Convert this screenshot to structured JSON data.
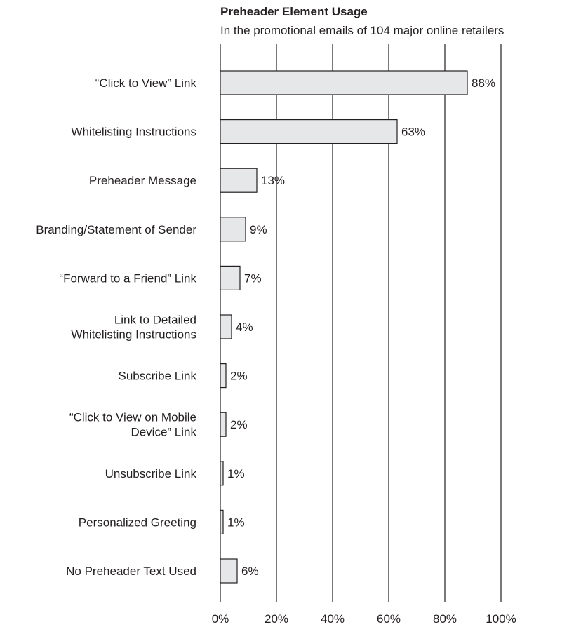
{
  "chart_data": {
    "type": "bar",
    "orientation": "horizontal",
    "title": "Preheader Element Usage",
    "subtitle": "In the promotional emails of 104 major online retailers",
    "xlabel": "",
    "ylabel": "",
    "xlim": [
      0,
      100
    ],
    "x_ticks": [
      "0%",
      "20%",
      "40%",
      "60%",
      "80%",
      "100%"
    ],
    "grid": true,
    "bar_color": "#e6e7e8",
    "bar_stroke": "#231f20",
    "categories": [
      [
        "“Click to View” Link"
      ],
      [
        "Whitelisting Instructions"
      ],
      [
        "Preheader Message"
      ],
      [
        "Branding/Statement of Sender"
      ],
      [
        "“Forward to a Friend” Link"
      ],
      [
        "Link to Detailed",
        "Whitelisting Instructions"
      ],
      [
        "Subscribe Link"
      ],
      [
        "“Click to View on Mobile",
        "Device” Link"
      ],
      [
        "Unsubscribe Link"
      ],
      [
        "Personalized Greeting"
      ],
      [
        "No Preheader Text Used"
      ]
    ],
    "values": [
      88,
      63,
      13,
      9,
      7,
      4,
      2,
      2,
      1,
      1,
      6
    ],
    "value_labels": [
      "88%",
      "63%",
      "13%",
      "9%",
      "7%",
      "4%",
      "2%",
      "2%",
      "1%",
      "1%",
      "6%"
    ]
  }
}
